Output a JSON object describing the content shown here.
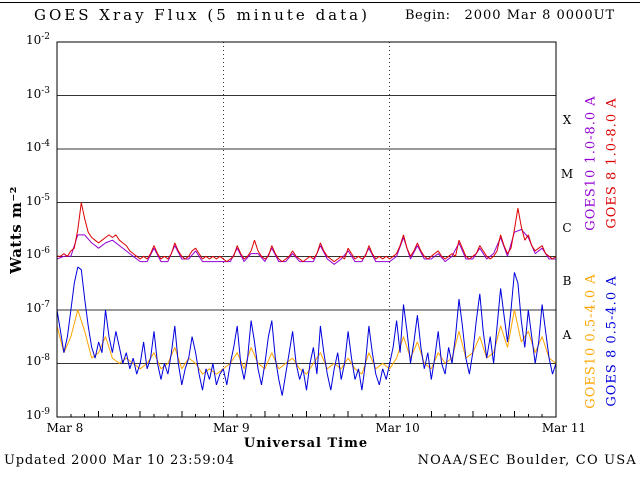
{
  "header": {
    "title": "GOES Xray Flux (5 minute data)",
    "begin_label": "Begin:",
    "begin_value": "2000 Mar 8 0000UT"
  },
  "footer": {
    "updated": "Updated 2000 Mar 10 23:59:04",
    "source": "NOAA/SEC Boulder, CO USA"
  },
  "chart_data": {
    "type": "line",
    "title": "GOES Xray Flux (5 minute data)",
    "xlabel": "Universal Time",
    "ylabel": "Watts m⁻²",
    "x_axis": {
      "unit": "hours since 2000 Mar 8 0000 UT",
      "range_hours": [
        0,
        72
      ],
      "ticks": [
        {
          "hour": 0,
          "label": "Mar 8"
        },
        {
          "hour": 24,
          "label": "Mar 9"
        },
        {
          "hour": 48,
          "label": "Mar 10"
        },
        {
          "hour": 72,
          "label": "Mar 11"
        }
      ],
      "day_boundaries_hours": [
        24,
        48
      ]
    },
    "y_axis": {
      "scale": "log10",
      "range_log10": [
        -9,
        -2
      ],
      "tick_exponents": [
        "-2",
        "-3",
        "-4",
        "-5",
        "-6",
        "-7",
        "-8",
        "-9"
      ]
    },
    "flare_classes": [
      {
        "label": "X",
        "log10_center": -3.5
      },
      {
        "label": "M",
        "log10_center": -4.5
      },
      {
        "label": "C",
        "log10_center": -5.5
      },
      {
        "label": "B",
        "log10_center": -6.5
      },
      {
        "label": "A",
        "log10_center": -7.5
      }
    ],
    "grid": {
      "horizontal_decade_lines": true,
      "vertical_day_lines": "dotted",
      "legend_position": "right-rotated"
    },
    "series": [
      {
        "name": "GOES10 1.0-8.0 A",
        "color": "#9400d3",
        "x_hours_start": 0,
        "x_hours_step": 1,
        "log10_flux": [
          -6.05,
          -6.0,
          -6.0,
          -5.6,
          -5.6,
          -5.75,
          -5.85,
          -5.75,
          -5.7,
          -5.8,
          -5.9,
          -6.0,
          -6.1,
          -6.1,
          -5.85,
          -6.1,
          -6.1,
          -5.8,
          -6.05,
          -6.05,
          -5.9,
          -6.1,
          -6.1,
          -6.1,
          -6.1,
          -6.1,
          -5.85,
          -6.1,
          -5.95,
          -5.95,
          -6.1,
          -5.85,
          -6.1,
          -6.1,
          -5.95,
          -6.1,
          -6.1,
          -6.1,
          -5.8,
          -6.05,
          -6.15,
          -6.05,
          -5.9,
          -6.1,
          -6.1,
          -5.85,
          -6.1,
          -6.1,
          -6.1,
          -6.0,
          -5.65,
          -6.05,
          -5.8,
          -6.05,
          -6.05,
          -5.95,
          -6.1,
          -6.0,
          -5.75,
          -6.05,
          -6.05,
          -5.85,
          -6.05,
          -5.95,
          -5.65,
          -6.0,
          -5.55,
          -5.5,
          -5.65,
          -5.95,
          -5.85,
          -6.05,
          -6.05
        ]
      },
      {
        "name": "GOES 8 1.0-8.0 A",
        "color": "#dd0000",
        "x_hours_start": 0,
        "x_hours_step": 0.5,
        "log10_flux": [
          -6.0,
          -6.0,
          -5.95,
          -6.0,
          -5.9,
          -5.85,
          -5.5,
          -5.0,
          -5.3,
          -5.55,
          -5.65,
          -5.7,
          -5.75,
          -5.7,
          -5.65,
          -5.6,
          -5.65,
          -5.6,
          -5.7,
          -5.75,
          -5.8,
          -5.9,
          -5.95,
          -6.0,
          -6.05,
          -6.0,
          -6.05,
          -5.95,
          -5.8,
          -5.95,
          -6.05,
          -6.0,
          -6.05,
          -5.95,
          -5.75,
          -5.9,
          -6.0,
          -6.05,
          -6.0,
          -5.9,
          -5.85,
          -5.95,
          -6.05,
          -6.0,
          -6.05,
          -6.0,
          -6.05,
          -6.0,
          -6.05,
          -6.1,
          -6.05,
          -6.0,
          -5.8,
          -5.95,
          -6.05,
          -6.0,
          -5.9,
          -5.7,
          -5.9,
          -6.0,
          -6.05,
          -6.0,
          -5.8,
          -5.95,
          -6.05,
          -6.1,
          -6.05,
          -6.0,
          -5.9,
          -6.0,
          -6.05,
          -6.1,
          -6.05,
          -6.0,
          -6.05,
          -5.95,
          -5.75,
          -5.9,
          -6.0,
          -6.05,
          -6.1,
          -6.05,
          -6.0,
          -6.05,
          -5.85,
          -5.95,
          -6.05,
          -6.0,
          -6.05,
          -6.0,
          -5.8,
          -5.95,
          -6.05,
          -6.0,
          -6.05,
          -6.0,
          -6.05,
          -6.0,
          -5.95,
          -5.8,
          -5.6,
          -5.85,
          -6.0,
          -5.9,
          -5.75,
          -5.9,
          -6.0,
          -6.05,
          -6.0,
          -5.95,
          -5.9,
          -6.0,
          -6.05,
          -6.0,
          -5.95,
          -6.0,
          -5.7,
          -5.85,
          -6.0,
          -6.05,
          -6.0,
          -5.95,
          -5.8,
          -5.9,
          -6.0,
          -6.05,
          -6.0,
          -5.9,
          -5.6,
          -5.8,
          -5.95,
          -5.85,
          -5.5,
          -5.1,
          -5.45,
          -5.7,
          -5.6,
          -5.8,
          -5.9,
          -5.85,
          -5.8,
          -5.95,
          -6.0,
          -6.05,
          -6.0
        ]
      },
      {
        "name": "GOES10 0.5-4.0 A",
        "color": "#ffa500",
        "x_hours_start": 0,
        "x_hours_step": 1,
        "log10_flux": [
          -7.3,
          -7.8,
          -7.5,
          -7.0,
          -7.4,
          -7.9,
          -7.8,
          -7.5,
          -7.9,
          -8.0,
          -7.9,
          -8.0,
          -8.1,
          -8.0,
          -7.8,
          -8.1,
          -8.0,
          -7.7,
          -8.1,
          -7.9,
          -8.0,
          -8.2,
          -8.1,
          -8.2,
          -8.1,
          -8.0,
          -7.8,
          -8.1,
          -7.7,
          -8.0,
          -8.1,
          -7.8,
          -8.1,
          -8.0,
          -7.9,
          -8.1,
          -8.2,
          -8.0,
          -7.8,
          -8.1,
          -8.0,
          -8.1,
          -7.9,
          -8.1,
          -8.2,
          -7.8,
          -8.1,
          -8.0,
          -8.1,
          -7.9,
          -7.5,
          -7.9,
          -7.6,
          -8.0,
          -8.1,
          -7.8,
          -8.0,
          -7.9,
          -7.4,
          -7.9,
          -7.8,
          -7.5,
          -7.9,
          -7.8,
          -7.3,
          -7.7,
          -7.0,
          -7.6,
          -7.4,
          -7.8,
          -7.5,
          -7.9,
          -8.0
        ]
      },
      {
        "name": "GOES 8 0.5-4.0 A",
        "color": "#0000dd",
        "x_hours_start": 0,
        "x_hours_step": 0.5,
        "log10_flux": [
          -7.0,
          -7.4,
          -7.8,
          -7.5,
          -7.0,
          -6.5,
          -6.2,
          -6.25,
          -6.8,
          -7.3,
          -7.7,
          -7.9,
          -7.6,
          -7.8,
          -7.0,
          -7.5,
          -7.8,
          -7.4,
          -7.7,
          -8.0,
          -7.8,
          -8.1,
          -7.9,
          -8.2,
          -8.0,
          -7.6,
          -8.1,
          -7.9,
          -7.4,
          -8.0,
          -8.3,
          -8.0,
          -8.2,
          -7.8,
          -7.3,
          -8.0,
          -8.4,
          -8.1,
          -7.9,
          -7.5,
          -7.8,
          -8.2,
          -8.5,
          -8.1,
          -8.3,
          -8.0,
          -8.4,
          -8.2,
          -8.1,
          -8.4,
          -8.0,
          -7.7,
          -7.3,
          -8.0,
          -8.3,
          -7.9,
          -7.2,
          -7.6,
          -8.1,
          -8.4,
          -8.0,
          -7.5,
          -7.2,
          -7.9,
          -8.3,
          -8.6,
          -8.2,
          -7.8,
          -7.4,
          -8.0,
          -8.3,
          -8.1,
          -8.5,
          -8.0,
          -7.7,
          -8.2,
          -7.3,
          -7.8,
          -8.2,
          -8.5,
          -8.1,
          -7.8,
          -8.3,
          -8.0,
          -7.4,
          -7.9,
          -8.3,
          -8.1,
          -8.5,
          -8.0,
          -7.3,
          -7.8,
          -8.2,
          -8.4,
          -8.1,
          -8.3,
          -8.0,
          -7.7,
          -7.2,
          -7.8,
          -6.9,
          -7.4,
          -8.0,
          -7.6,
          -7.1,
          -7.7,
          -8.1,
          -7.8,
          -8.3,
          -7.9,
          -7.4,
          -8.0,
          -8.2,
          -7.7,
          -8.0,
          -7.5,
          -6.8,
          -7.3,
          -7.9,
          -8.2,
          -7.8,
          -7.2,
          -6.7,
          -7.4,
          -7.9,
          -7.5,
          -8.0,
          -7.3,
          -6.6,
          -7.1,
          -7.6,
          -7.0,
          -6.3,
          -6.5,
          -7.2,
          -7.7,
          -7.0,
          -7.5,
          -8.0,
          -7.6,
          -6.9,
          -7.4,
          -7.9,
          -8.2,
          -8.0
        ]
      }
    ]
  }
}
